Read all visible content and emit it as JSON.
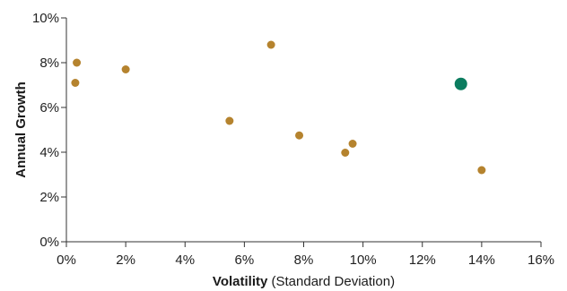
{
  "chart_data": {
    "type": "scatter",
    "title": "",
    "xlabel": {
      "bold": "Volatility",
      "rest": " (Standard Deviation)"
    },
    "ylabel": "Annual Growth",
    "xlim": [
      0,
      16
    ],
    "ylim": [
      0,
      10
    ],
    "x_ticks": [
      0,
      2,
      4,
      6,
      8,
      10,
      12,
      14,
      16
    ],
    "y_ticks": [
      0,
      2,
      4,
      6,
      8,
      10
    ],
    "x_tick_labels": [
      "0%",
      "2%",
      "4%",
      "6%",
      "8%",
      "10%",
      "12%",
      "14%",
      "16%"
    ],
    "y_tick_labels": [
      "0%",
      "2%",
      "4%",
      "6%",
      "8%",
      "10%"
    ],
    "grid": false,
    "colors": {
      "points": "#b5832e",
      "highlight": "#0b7c5f",
      "axis": "#333333"
    },
    "series": [
      {
        "points": [
          {
            "x": 0.35,
            "y": 8.0
          },
          {
            "x": 0.3,
            "y": 7.1
          },
          {
            "x": 2.0,
            "y": 7.7
          },
          {
            "x": 5.5,
            "y": 5.4
          },
          {
            "x": 6.9,
            "y": 8.8
          },
          {
            "x": 7.85,
            "y": 4.75
          },
          {
            "x": 9.4,
            "y": 3.98
          },
          {
            "x": 9.65,
            "y": 4.38
          },
          {
            "x": 14.0,
            "y": 3.2
          }
        ]
      },
      {
        "highlight": true,
        "points": [
          {
            "x": 13.3,
            "y": 7.05
          }
        ]
      }
    ]
  }
}
